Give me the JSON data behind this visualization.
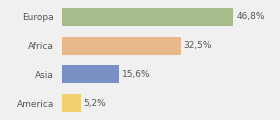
{
  "categories": [
    "Europa",
    "Africa",
    "Asia",
    "America"
  ],
  "values": [
    46.8,
    32.5,
    15.6,
    5.2
  ],
  "labels": [
    "46,8%",
    "32,5%",
    "15,6%",
    "5,2%"
  ],
  "bar_colors": [
    "#a8bb8a",
    "#e8b88a",
    "#7a8fc4",
    "#f0d070"
  ],
  "background_color": "#f0f0f0",
  "xlim": [
    0,
    58
  ],
  "label_fontsize": 6.5,
  "category_fontsize": 6.5,
  "bar_height": 0.62
}
